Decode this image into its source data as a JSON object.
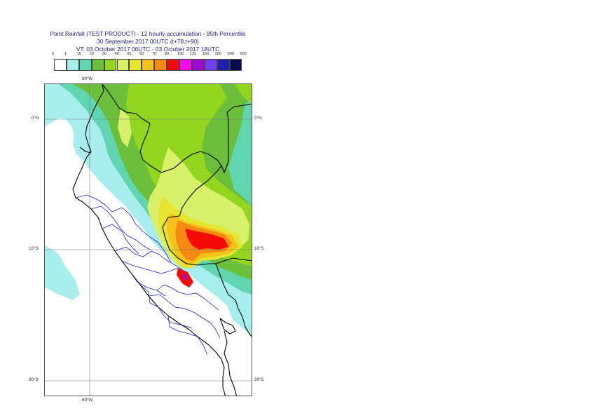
{
  "header": {
    "title_line1": "Point Rainfall (TEST PRODUCT) - 12 hourly accumulation - 95th Percentile",
    "title_line2": "30 September 2017 00UTC (t+78,t+90)",
    "title_line3": "VT: 03 October 2017 06UTC - 03 October 2017 18UTC"
  },
  "legend": {
    "thresholds": [
      "0",
      "1",
      "10",
      "20",
      "30",
      "40",
      "50",
      "60",
      "70",
      "80",
      "100",
      "125",
      "150",
      "200",
      "300",
      "500"
    ],
    "colors": [
      "#ffffff",
      "#a8eeee",
      "#5fd6b0",
      "#6cbf3a",
      "#93d61f",
      "#d8f06a",
      "#e6e630",
      "#f5c21b",
      "#f58a12",
      "#f50a0a",
      "#f50af0",
      "#a10ad0",
      "#7040f0",
      "#2020a8",
      "#0a0a50"
    ]
  },
  "map": {
    "lat_labels": {
      "eq_left": "0°N",
      "eq_right": "0°N",
      "s10_left": "10°S",
      "s10_right": "10°S",
      "s20_left": "20°S",
      "s20_right": "20°S"
    },
    "lon_labels": {
      "top": "80°W",
      "bottom": "80°W"
    },
    "precip_colors": {
      "light": "#a8eeee",
      "cyan": "#5fd6b0",
      "green": "#6cbf3a",
      "lime": "#93d61f",
      "yellowgreen": "#d8f06a",
      "yellow": "#e6e630",
      "orange": "#f5c21b",
      "darkorange": "#f58a12",
      "red": "#f50a0a",
      "magenta": "#a10ad0"
    }
  }
}
